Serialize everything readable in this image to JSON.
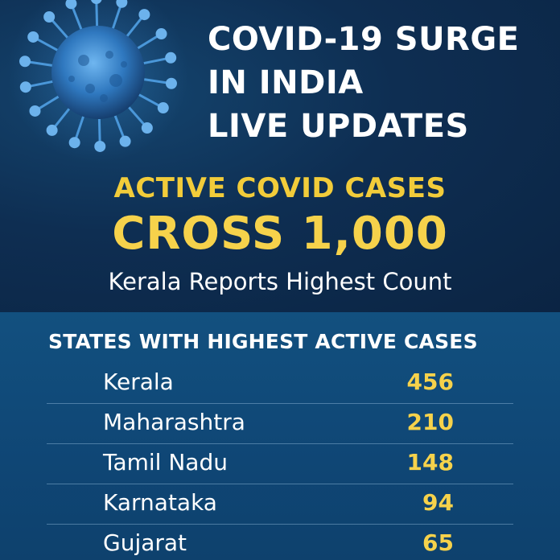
{
  "headline": {
    "lines": [
      "COVID-19 SURGE",
      "IN INDIA",
      "LIVE UPDATES"
    ]
  },
  "subhead": {
    "active": "ACTIVE COVID CASES",
    "cross": "CROSS 1,000",
    "kerala": "Kerala Reports Highest Count"
  },
  "table": {
    "title": "STATES WITH HIGHEST ACTIVE CASES",
    "rows": [
      {
        "state": "Kerala",
        "count": "456"
      },
      {
        "state": "Maharashtra",
        "count": "210"
      },
      {
        "state": "Tamil Nadu",
        "count": "148"
      },
      {
        "state": "Karnataka",
        "count": "94"
      },
      {
        "state": "Gujarat",
        "count": "65"
      }
    ]
  },
  "colors": {
    "accent": "#f6d24b",
    "background_top": "#0e2e52",
    "background_bottom": "#12507f",
    "virus": "#3f8fd6"
  },
  "icons": {
    "virus": "coronavirus-icon"
  }
}
